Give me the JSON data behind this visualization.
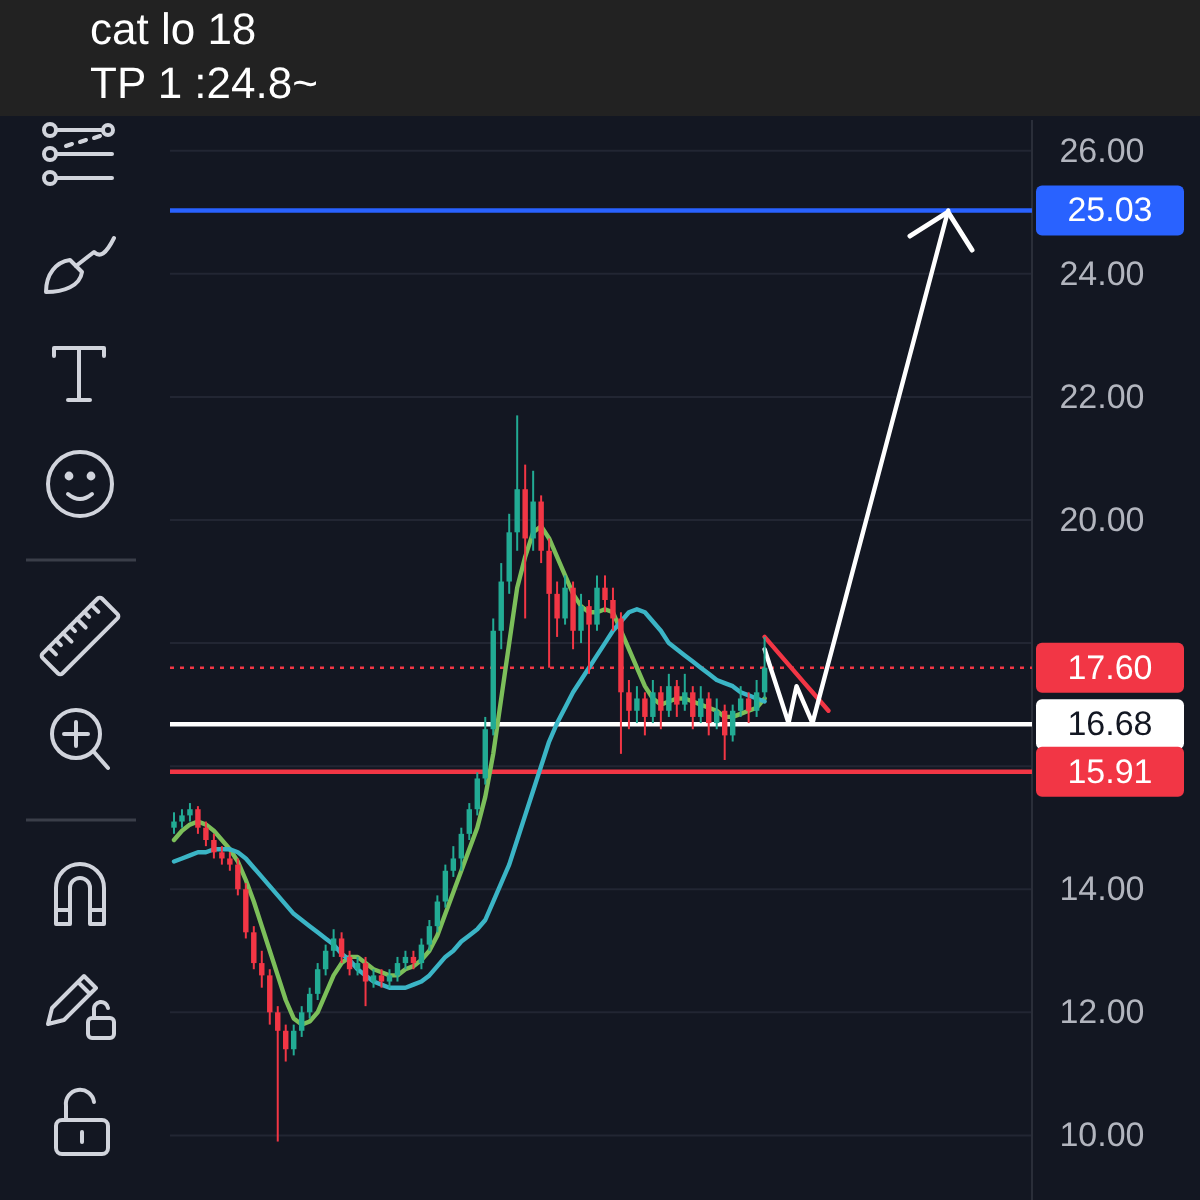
{
  "chart_data": {
    "type": "candlestick",
    "annotations": [
      "cat lo 18",
      "TP 1 :24.8~"
    ],
    "categories": [
      null,
      null,
      null,
      null,
      null,
      null,
      null,
      null,
      null,
      null,
      null,
      null,
      null,
      null,
      null,
      null,
      null,
      null,
      null,
      null,
      null,
      null,
      null,
      null,
      null,
      null,
      null,
      null,
      null,
      null,
      null,
      null,
      null,
      null,
      null,
      null,
      null,
      null,
      null,
      null,
      null,
      null,
      null,
      null,
      null,
      null,
      null,
      null,
      null,
      null,
      null,
      null,
      null,
      null,
      null,
      null,
      null,
      null,
      null,
      null,
      null,
      null,
      null,
      null,
      null,
      null,
      null,
      null,
      null,
      null,
      null,
      null,
      null,
      null,
      null,
      null,
      null,
      null,
      null,
      null,
      null,
      null,
      null,
      null,
      null,
      null,
      null,
      null,
      null,
      null,
      null,
      null,
      null,
      null,
      null,
      null,
      null,
      null,
      null,
      null,
      null,
      null,
      null,
      null,
      null,
      null,
      null
    ],
    "ohlc": [
      [
        15.0,
        15.25,
        14.9,
        15.1
      ],
      [
        15.1,
        15.3,
        15.0,
        15.2
      ],
      [
        15.2,
        15.4,
        15.1,
        15.3
      ],
      [
        15.3,
        15.35,
        14.9,
        15.0
      ],
      [
        15.0,
        15.1,
        14.7,
        14.8
      ],
      [
        14.8,
        14.9,
        14.5,
        14.6
      ],
      [
        14.6,
        14.7,
        14.4,
        14.5
      ],
      [
        14.5,
        14.6,
        14.3,
        14.4
      ],
      [
        14.4,
        14.5,
        13.9,
        14.0
      ],
      [
        14.0,
        14.1,
        13.2,
        13.3
      ],
      [
        13.3,
        13.4,
        12.7,
        12.8
      ],
      [
        12.8,
        13.0,
        12.4,
        12.6
      ],
      [
        12.6,
        12.7,
        11.8,
        12.0
      ],
      [
        12.0,
        12.1,
        9.9,
        11.7
      ],
      [
        11.7,
        11.8,
        11.2,
        11.4
      ],
      [
        11.4,
        11.8,
        11.3,
        11.7
      ],
      [
        11.7,
        12.1,
        11.6,
        12.0
      ],
      [
        12.0,
        12.4,
        11.9,
        12.3
      ],
      [
        12.3,
        12.8,
        12.2,
        12.7
      ],
      [
        12.7,
        13.1,
        12.6,
        13.0
      ],
      [
        13.0,
        13.35,
        12.9,
        13.2
      ],
      [
        13.2,
        13.3,
        12.8,
        12.9
      ],
      [
        12.9,
        13.0,
        12.6,
        12.7
      ],
      [
        12.7,
        12.9,
        12.6,
        12.8
      ],
      [
        12.8,
        12.9,
        12.1,
        12.5
      ],
      [
        12.5,
        12.7,
        12.4,
        12.6
      ],
      [
        12.6,
        12.7,
        12.4,
        12.5
      ],
      [
        12.5,
        12.7,
        12.4,
        12.6
      ],
      [
        12.6,
        12.9,
        12.5,
        12.8
      ],
      [
        12.8,
        13.0,
        12.7,
        12.9
      ],
      [
        12.9,
        13.0,
        12.7,
        12.8
      ],
      [
        12.8,
        13.2,
        12.7,
        13.1
      ],
      [
        13.1,
        13.5,
        13.0,
        13.4
      ],
      [
        13.4,
        13.9,
        13.3,
        13.8
      ],
      [
        13.8,
        14.4,
        13.7,
        14.3
      ],
      [
        14.3,
        14.7,
        14.2,
        14.5
      ],
      [
        14.5,
        15.0,
        14.3,
        14.9
      ],
      [
        14.9,
        15.4,
        14.8,
        15.3
      ],
      [
        15.3,
        15.9,
        15.2,
        15.8
      ],
      [
        15.8,
        16.8,
        15.7,
        16.6
      ],
      [
        16.6,
        18.4,
        16.5,
        18.2
      ],
      [
        18.2,
        19.3,
        17.9,
        19.0
      ],
      [
        19.0,
        20.1,
        18.8,
        19.8
      ],
      [
        19.8,
        21.7,
        19.5,
        20.5
      ],
      [
        20.5,
        20.9,
        18.4,
        19.7
      ],
      [
        19.7,
        20.8,
        19.5,
        20.3
      ],
      [
        20.3,
        20.4,
        19.3,
        19.5
      ],
      [
        19.5,
        19.7,
        17.6,
        18.8
      ],
      [
        18.8,
        19.0,
        18.1,
        18.4
      ],
      [
        18.4,
        19.1,
        18.3,
        18.9
      ],
      [
        18.9,
        19.0,
        17.9,
        18.2
      ],
      [
        18.2,
        18.8,
        18.0,
        18.6
      ],
      [
        18.6,
        18.7,
        17.5,
        18.3
      ],
      [
        18.3,
        19.1,
        18.2,
        18.9
      ],
      [
        18.9,
        19.1,
        18.5,
        18.7
      ],
      [
        18.7,
        18.9,
        18.2,
        18.4
      ],
      [
        18.4,
        18.5,
        16.2,
        17.2
      ],
      [
        17.2,
        17.4,
        16.6,
        16.9
      ],
      [
        16.9,
        17.3,
        16.7,
        17.1
      ],
      [
        17.1,
        17.2,
        16.5,
        16.8
      ],
      [
        16.8,
        17.4,
        16.7,
        17.2
      ],
      [
        17.2,
        17.3,
        16.6,
        16.9
      ],
      [
        16.9,
        17.5,
        16.8,
        17.3
      ],
      [
        17.3,
        17.4,
        16.8,
        17.0
      ],
      [
        17.0,
        17.5,
        16.9,
        17.2
      ],
      [
        17.2,
        17.3,
        16.6,
        16.8
      ],
      [
        16.8,
        17.3,
        16.7,
        17.1
      ],
      [
        17.1,
        17.2,
        16.5,
        16.7
      ],
      [
        16.7,
        17.1,
        16.6,
        16.9
      ],
      [
        16.9,
        17.0,
        16.1,
        16.5
      ],
      [
        16.5,
        17.0,
        16.4,
        16.9
      ],
      [
        16.9,
        17.3,
        16.8,
        17.1
      ],
      [
        17.1,
        17.2,
        16.7,
        16.9
      ],
      [
        16.9,
        17.4,
        16.8,
        17.2
      ],
      [
        17.2,
        18.1,
        17.1,
        17.6
      ],
      null,
      null,
      null,
      null,
      null,
      null,
      null,
      null,
      null,
      null,
      null,
      null,
      null,
      null,
      null,
      null,
      null,
      null,
      null,
      null,
      null,
      null,
      null,
      null,
      null,
      null,
      null,
      null,
      null,
      null,
      null,
      null
    ],
    "colors": [
      "#22ab94",
      "#22ab94",
      "#22ab94",
      "#f23645",
      "#f23645",
      "#f23645",
      "#f23645",
      "#f23645",
      "#f23645",
      "#f23645",
      "#f23645",
      "#f23645",
      "#f23645",
      "#f23645",
      "#f23645",
      "#22ab94",
      "#22ab94",
      "#22ab94",
      "#22ab94",
      "#22ab94",
      "#22ab94",
      "#f23645",
      "#f23645",
      "#22ab94",
      "#f23645",
      "#22ab94",
      "#f23645",
      "#22ab94",
      "#22ab94",
      "#22ab94",
      "#f23645",
      "#22ab94",
      "#22ab94",
      "#22ab94",
      "#22ab94",
      "#22ab94",
      "#22ab94",
      "#22ab94",
      "#22ab94",
      "#22ab94",
      "#22ab94",
      "#22ab94",
      "#22ab94",
      "#22ab94",
      "#f23645",
      "#22ab94",
      "#f23645",
      "#f23645",
      "#f23645",
      "#22ab94",
      "#f23645",
      "#22ab94",
      "#f23645",
      "#22ab94",
      "#f23645",
      "#f23645",
      "#f23645",
      "#f23645",
      "#22ab94",
      "#f23645",
      "#22ab94",
      "#f23645",
      "#22ab94",
      "#f23645",
      "#22ab94",
      "#f23645",
      "#22ab94",
      "#f23645",
      "#22ab94",
      "#f23645",
      "#22ab94",
      "#22ab94",
      "#f23645",
      "#22ab94",
      "#22ab94",
      null,
      null,
      null,
      null,
      null,
      null,
      null,
      null,
      null,
      null,
      null,
      null,
      null,
      null,
      null,
      null,
      null,
      null,
      null,
      null,
      null,
      null,
      null,
      null,
      null,
      null,
      null,
      null,
      null,
      null,
      null,
      null
    ],
    "series": [
      {
        "type": "line",
        "color": "#7cbf5a",
        "values": [
          14.8,
          14.95,
          15.05,
          15.1,
          15.05,
          14.95,
          14.8,
          14.65,
          14.45,
          14.15,
          13.8,
          13.4,
          13.0,
          12.6,
          12.2,
          11.9,
          11.8,
          11.85,
          12.0,
          12.3,
          12.6,
          12.8,
          12.9,
          12.9,
          12.8,
          12.7,
          12.65,
          12.6,
          12.6,
          12.7,
          12.75,
          12.85,
          13.0,
          13.25,
          13.6,
          13.95,
          14.3,
          14.65,
          15.0,
          15.5,
          16.2,
          17.1,
          18.0,
          18.9,
          19.4,
          19.8,
          19.9,
          19.7,
          19.4,
          19.1,
          18.8,
          18.6,
          18.5,
          18.5,
          18.55,
          18.5,
          18.2,
          17.9,
          17.6,
          17.3,
          17.1,
          17.0,
          17.05,
          17.1,
          17.1,
          17.05,
          17.0,
          16.95,
          16.9,
          16.8,
          16.8,
          16.85,
          16.9,
          16.95,
          17.1,
          null,
          null,
          null,
          null,
          null,
          null,
          null,
          null,
          null,
          null,
          null,
          null,
          null,
          null,
          null,
          null,
          null,
          null,
          null,
          null,
          null,
          null,
          null,
          null,
          null,
          null,
          null,
          null,
          null,
          null,
          null,
          null
        ]
      },
      {
        "type": "line",
        "color": "#3bb5c6",
        "values": [
          14.45,
          14.5,
          14.55,
          14.6,
          14.6,
          14.65,
          14.65,
          14.65,
          14.6,
          14.5,
          14.35,
          14.2,
          14.05,
          13.9,
          13.75,
          13.6,
          13.5,
          13.4,
          13.3,
          13.2,
          13.1,
          12.95,
          12.85,
          12.7,
          12.6,
          12.5,
          12.45,
          12.4,
          12.4,
          12.4,
          12.45,
          12.5,
          12.6,
          12.75,
          12.9,
          13.0,
          13.15,
          13.25,
          13.35,
          13.5,
          13.8,
          14.1,
          14.4,
          14.8,
          15.2,
          15.6,
          16.0,
          16.4,
          16.7,
          16.95,
          17.2,
          17.4,
          17.6,
          17.8,
          18.0,
          18.2,
          18.35,
          18.5,
          18.55,
          18.5,
          18.35,
          18.2,
          18.0,
          17.9,
          17.8,
          17.7,
          17.6,
          17.5,
          17.4,
          17.35,
          17.3,
          17.2,
          17.15,
          17.1,
          17.05,
          null,
          null,
          null,
          null,
          null,
          null,
          null,
          null,
          null,
          null,
          null,
          null,
          null,
          null,
          null,
          null,
          null,
          null,
          null,
          null,
          null,
          null,
          null,
          null,
          null,
          null,
          null,
          null,
          null,
          null,
          null,
          null
        ]
      },
      {
        "type": "line",
        "color": "#f23645",
        "values": [
          null,
          null,
          null,
          null,
          null,
          null,
          null,
          null,
          null,
          null,
          null,
          null,
          null,
          null,
          null,
          null,
          null,
          null,
          null,
          null,
          null,
          null,
          null,
          null,
          null,
          null,
          null,
          null,
          null,
          null,
          null,
          null,
          null,
          null,
          null,
          null,
          null,
          null,
          null,
          null,
          null,
          null,
          null,
          null,
          null,
          null,
          null,
          null,
          null,
          null,
          null,
          null,
          null,
          null,
          null,
          null,
          null,
          null,
          null,
          null,
          null,
          null,
          null,
          null,
          null,
          null,
          null,
          null,
          null,
          null,
          null,
          null,
          null,
          null,
          18.1,
          17.95,
          17.8,
          17.65,
          17.5,
          17.35,
          17.2,
          17.05,
          16.9,
          null,
          null,
          null,
          null,
          null,
          null,
          null,
          null,
          null,
          null,
          null,
          null,
          null,
          null,
          null,
          null,
          null,
          null,
          null,
          null,
          null,
          null,
          null,
          null
        ]
      },
      {
        "type": "line",
        "color": "#ffffff",
        "values": [
          null,
          null,
          null,
          null,
          null,
          null,
          null,
          null,
          null,
          null,
          null,
          null,
          null,
          null,
          null,
          null,
          null,
          null,
          null,
          null,
          null,
          null,
          null,
          null,
          null,
          null,
          null,
          null,
          null,
          null,
          null,
          null,
          null,
          null,
          null,
          null,
          null,
          null,
          null,
          null,
          null,
          null,
          null,
          null,
          null,
          null,
          null,
          null,
          null,
          null,
          null,
          null,
          null,
          null,
          null,
          null,
          null,
          null,
          null,
          null,
          null,
          null,
          null,
          null,
          null,
          null,
          null,
          null,
          null,
          null,
          null,
          null,
          null,
          null,
          17.9,
          17.5,
          17.1,
          16.7,
          17.3,
          17.0,
          16.7,
          17.19,
          17.68,
          18.17,
          18.66,
          19.15,
          19.64,
          20.13,
          20.62,
          21.11,
          21.6,
          22.09,
          22.58,
          23.07,
          23.56,
          24.05,
          24.54,
          25.03,
          null,
          null,
          null,
          null,
          null,
          null,
          null,
          null,
          null
        ]
      }
    ],
    "ylim": [
      8.95,
      26.5
    ],
    "yticks": [
      {
        "value": 10,
        "label": "10.00"
      },
      {
        "value": 12,
        "label": "12.00"
      },
      {
        "value": 14,
        "label": "14.00"
      },
      {
        "value": 16,
        "label": null
      },
      {
        "value": 18,
        "label": null
      },
      {
        "value": 20,
        "label": "20.00"
      },
      {
        "value": 22,
        "label": "22.00"
      },
      {
        "value": 24,
        "label": "24.00"
      },
      {
        "value": 26,
        "label": "26.00"
      }
    ],
    "grid": "y",
    "tick_labels": "y",
    "ref_lines": [
      {
        "axis": "y",
        "value": 25.03,
        "label": "25.03",
        "color": "#2962ff"
      },
      {
        "axis": "y",
        "value": 17.6,
        "label": "17.60",
        "color": "#f23645",
        "line_style": "dotted"
      },
      {
        "axis": "y",
        "value": 16.68,
        "label": "16.68",
        "color": "#ffffff"
      },
      {
        "axis": "y",
        "value": 15.91,
        "label": "15.91",
        "color": "#f23645"
      }
    ]
  }
}
